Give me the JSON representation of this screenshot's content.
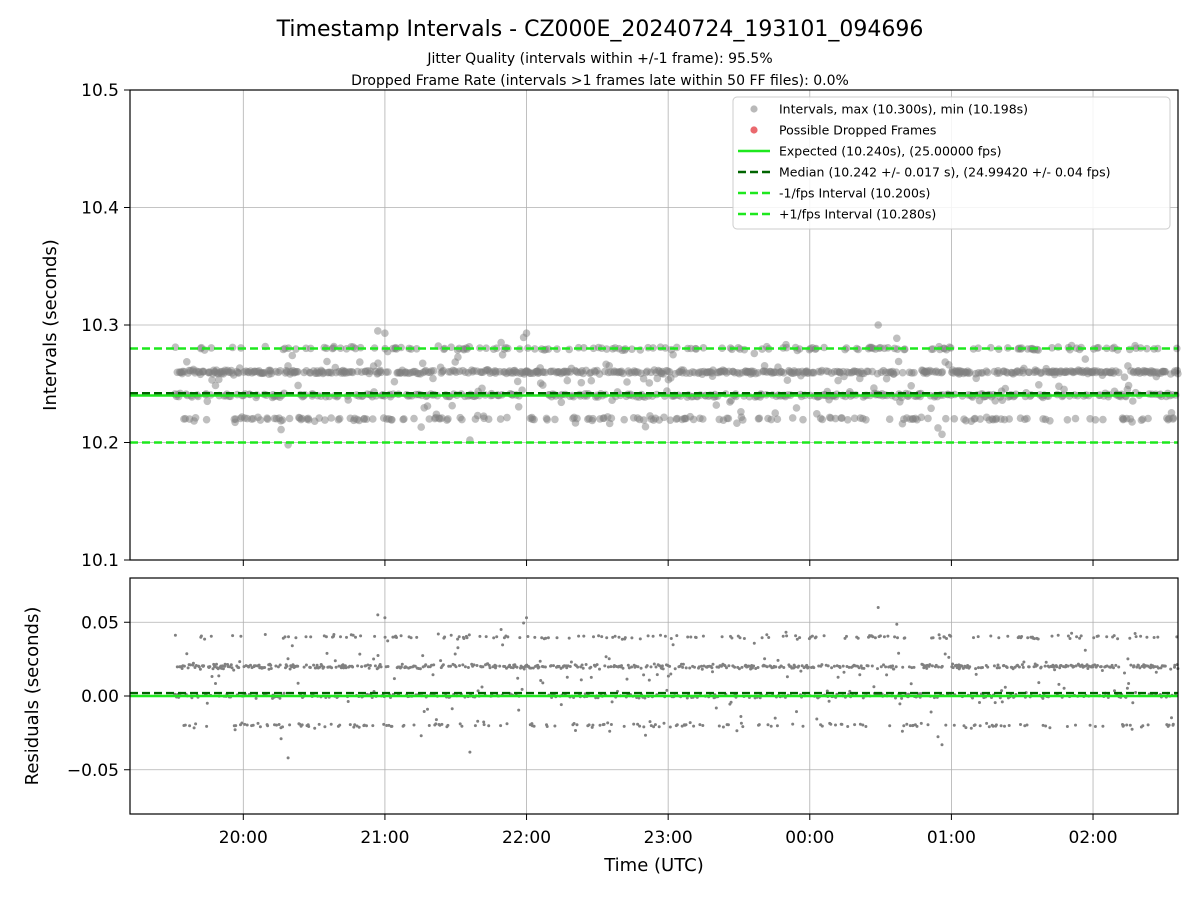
{
  "figure": {
    "title": "Timestamp Intervals - CZ000E_20240724_193101_094696",
    "subtitle1": "Jitter Quality (intervals within +/-1 frame): 95.5%",
    "subtitle2": "Dropped Frame Rate (intervals >1 frames late within 50 FF files): 0.0%"
  },
  "colors": {
    "intervals": "#808080",
    "dropped": "#e8595e",
    "expected": "#1ee81e",
    "median": "#006400",
    "band": "#1ee81e"
  },
  "chart_data": [
    {
      "type": "scatter",
      "title": "Timestamp Intervals - CZ000E_20240724_193101_094696",
      "ylabel": "Intervals (seconds)",
      "xlabel": "",
      "ylim": [
        10.1,
        10.5
      ],
      "xlim_hours": [
        19.2,
        26.6
      ],
      "grid": true,
      "legend_position": "top-right",
      "yticks": [
        "10.1",
        "10.2",
        "10.3",
        "10.4",
        "10.5"
      ],
      "series": [
        {
          "name": "Intervals, max (10.300s), min (10.198s)",
          "kind": "points",
          "max": 10.3,
          "min": 10.198,
          "levels": [
            10.22,
            10.24,
            10.26,
            10.28
          ],
          "x_start": "19:31",
          "x_end": "02:36",
          "outliers": [
            {
              "x": "20:19",
              "y": 10.198
            },
            {
              "x": "20:16",
              "y": 10.211
            },
            {
              "x": "21:36",
              "y": 10.202
            },
            {
              "x": "00:29",
              "y": 10.3
            },
            {
              "x": "20:57",
              "y": 10.295
            },
            {
              "x": "21:00",
              "y": 10.293
            },
            {
              "x": "00:56",
              "y": 10.207
            },
            {
              "x": "22:00",
              "y": 10.293
            }
          ]
        },
        {
          "name": "Possible Dropped Frames",
          "kind": "points",
          "values": []
        },
        {
          "name": "Expected (10.240s), (25.00000 fps)",
          "kind": "hline",
          "y": 10.24
        },
        {
          "name": "Median (10.242 +/- 0.017 s), (24.99420 +/- 0.04 fps)",
          "kind": "hline-dashed",
          "y": 10.242
        },
        {
          "name": "-1/fps Interval (10.200s)",
          "kind": "hline-dashed",
          "y": 10.2
        },
        {
          "name": "+1/fps Interval (10.280s)",
          "kind": "hline-dashed",
          "y": 10.28
        }
      ]
    },
    {
      "type": "scatter",
      "ylabel": "Residuals (seconds)",
      "xlabel": "Time (UTC)",
      "ylim": [
        -0.08,
        0.08
      ],
      "grid": true,
      "yticks": [
        "−0.05",
        "0.00",
        "0.05"
      ],
      "xticks": [
        "20:00",
        "21:00",
        "22:00",
        "23:00",
        "00:00",
        "01:00",
        "02:00"
      ],
      "series": [
        {
          "kind": "points",
          "levels": [
            -0.02,
            0.0,
            0.02,
            0.04
          ],
          "outliers": [
            {
              "x": "20:19",
              "y": -0.042
            },
            {
              "x": "20:16",
              "y": -0.029
            },
            {
              "x": "21:36",
              "y": -0.038
            },
            {
              "x": "00:29",
              "y": 0.06
            },
            {
              "x": "20:57",
              "y": 0.055
            },
            {
              "x": "22:00",
              "y": 0.052
            },
            {
              "x": "00:56",
              "y": -0.033
            }
          ]
        },
        {
          "kind": "hline",
          "y": 0.0
        },
        {
          "kind": "hline-dashed",
          "y": 0.002
        }
      ]
    }
  ]
}
